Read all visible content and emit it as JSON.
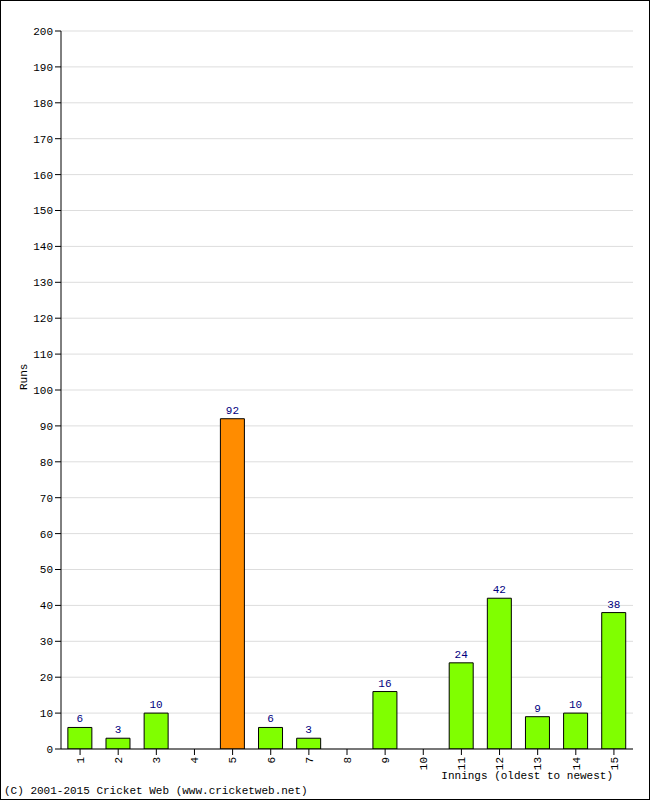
{
  "chart_data": {
    "type": "bar",
    "categories": [
      "1",
      "2",
      "3",
      "4",
      "5",
      "6",
      "7",
      "8",
      "9",
      "10",
      "11",
      "12",
      "13",
      "14",
      "15"
    ],
    "values": [
      6,
      3,
      10,
      0,
      92,
      6,
      3,
      0,
      16,
      0,
      24,
      42,
      9,
      10,
      38
    ],
    "colors": [
      "#80ff00",
      "#80ff00",
      "#80ff00",
      "#80ff00",
      "#ff8c00",
      "#80ff00",
      "#80ff00",
      "#80ff00",
      "#80ff00",
      "#80ff00",
      "#80ff00",
      "#80ff00",
      "#80ff00",
      "#80ff00",
      "#80ff00"
    ],
    "x_label": "Innings (oldest to newest)",
    "y_label": "Runs",
    "ylim": [
      0,
      200
    ],
    "yticks": [
      0,
      10,
      20,
      30,
      40,
      50,
      60,
      70,
      80,
      90,
      100,
      110,
      120,
      130,
      140,
      150,
      160,
      170,
      180,
      190,
      200
    ],
    "grid": true,
    "data_labels": true,
    "annotations": [
      "(C) 2001-2015 Cricket Web (www.cricketweb.net)"
    ]
  }
}
